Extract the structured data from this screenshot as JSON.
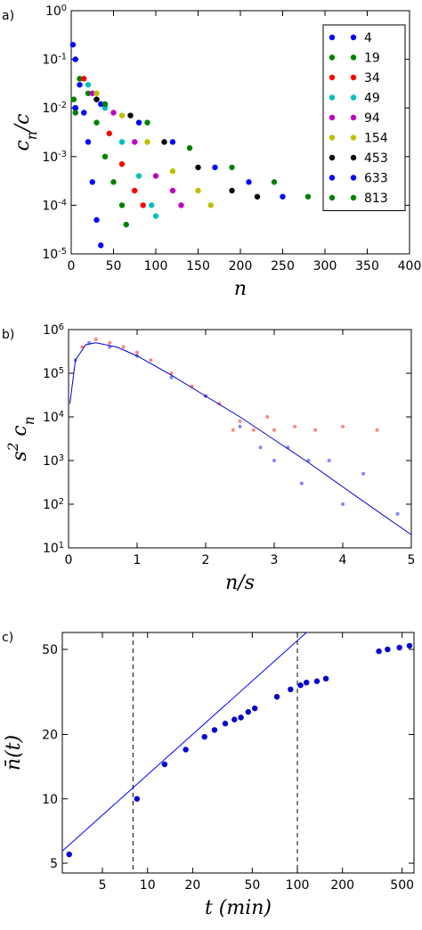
{
  "chart_data": [
    {
      "type": "scatter",
      "panel_label": "a)",
      "x_label": "n",
      "y_label": "c_{n}/c",
      "xlim": [
        0,
        400
      ],
      "ylim": [
        1e-05,
        1
      ],
      "ylog": true,
      "xlog": false,
      "xticks": [
        0,
        50,
        100,
        150,
        200,
        250,
        300,
        350,
        400
      ],
      "yticks": [
        {
          "value": 1e-05,
          "label": "10^{-5}"
        },
        {
          "value": 0.0001,
          "label": "10^{-4}"
        },
        {
          "value": 0.001,
          "label": "10^{-3}"
        },
        {
          "value": 0.01,
          "label": "10^{-2}"
        },
        {
          "value": 0.1,
          "label": "10^{-1}"
        },
        {
          "value": 1,
          "label": "10^{0}"
        }
      ],
      "legend": "upper right",
      "series": [
        {
          "name": "4",
          "color": "#0000ff",
          "x": [
            2,
            5,
            10,
            15,
            20,
            25,
            30,
            35
          ],
          "values": [
            0.2,
            0.1,
            0.03,
            0.008,
            0.002,
            0.0003,
            5e-05,
            1.5e-05
          ]
        },
        {
          "name": "19",
          "color": "#008000",
          "x": [
            3,
            10,
            20,
            30,
            40,
            50,
            60,
            65
          ],
          "values": [
            0.015,
            0.04,
            0.02,
            0.005,
            0.001,
            0.0003,
            0.0001,
            4e-05
          ]
        },
        {
          "name": "34",
          "color": "#ff0000",
          "x": [
            5,
            15,
            30,
            45,
            60,
            75,
            85
          ],
          "values": [
            0.01,
            0.04,
            0.015,
            0.003,
            0.0007,
            0.0002,
            0.0001
          ]
        },
        {
          "name": "49",
          "color": "#00bfbf",
          "x": [
            5,
            20,
            40,
            60,
            80,
            95,
            100
          ],
          "values": [
            0.01,
            0.03,
            0.01,
            0.002,
            0.0004,
            0.0001,
            6e-05
          ]
        },
        {
          "name": "94",
          "color": "#bf00bf",
          "x": [
            5,
            25,
            50,
            75,
            100,
            120,
            130
          ],
          "values": [
            0.01,
            0.02,
            0.008,
            0.002,
            0.0004,
            0.0002,
            0.0001
          ]
        },
        {
          "name": "154",
          "color": "#bfbf00",
          "x": [
            5,
            30,
            60,
            90,
            120,
            150,
            165
          ],
          "values": [
            0.01,
            0.02,
            0.007,
            0.002,
            0.0005,
            0.0002,
            0.0001
          ]
        },
        {
          "name": "453",
          "color": "#000000",
          "x": [
            5,
            30,
            70,
            110,
            150,
            190,
            220
          ],
          "values": [
            0.01,
            0.015,
            0.007,
            0.002,
            0.0006,
            0.0002,
            0.00015
          ]
        },
        {
          "name": "633",
          "color": "#0000ff",
          "x": [
            5,
            35,
            80,
            120,
            170,
            210,
            250
          ],
          "values": [
            0.01,
            0.012,
            0.005,
            0.002,
            0.0006,
            0.0003,
            0.00015
          ]
        },
        {
          "name": "813",
          "color": "#008000",
          "x": [
            5,
            40,
            90,
            140,
            190,
            240,
            280
          ],
          "values": [
            0.008,
            0.012,
            0.005,
            0.0015,
            0.0006,
            0.0003,
            0.00015
          ]
        }
      ]
    },
    {
      "type": "scatter",
      "panel_label": "b)",
      "x_label": "n/s",
      "y_label": "s^{2} c_{n}",
      "xlim": [
        0,
        5
      ],
      "ylim": [
        10,
        1000000
      ],
      "ylog": true,
      "xlog": false,
      "xticks": [
        0,
        1,
        2,
        3,
        4,
        5
      ],
      "yticks": [
        {
          "value": 10,
          "label": "10^{1}"
        },
        {
          "value": 100,
          "label": "10^{2}"
        },
        {
          "value": 1000,
          "label": "10^{3}"
        },
        {
          "value": 10000,
          "label": "10^{4}"
        },
        {
          "value": 100000,
          "label": "10^{5}"
        },
        {
          "value": 1000000,
          "label": "10^{6}"
        }
      ],
      "series": [
        {
          "color": "#ff5050",
          "x": [
            0.2,
            0.4,
            0.6,
            0.8,
            1,
            1.2,
            1.5,
            1.8,
            2,
            2.2,
            2.4,
            2.5,
            2.7,
            2.9,
            3,
            3.3,
            3.6,
            4,
            4.5
          ],
          "values": [
            400000,
            600000,
            500000,
            400000,
            300000,
            200000,
            100000,
            50000,
            30000,
            20000,
            5000,
            8000,
            5000,
            10000,
            5000,
            6000,
            5000,
            6000,
            5000
          ]
        },
        {
          "color": "#5050ff",
          "x": [
            0.1,
            0.3,
            0.6,
            1,
            1.5,
            2,
            2.5,
            2.8,
            3,
            3.2,
            3.4,
            3.5,
            3.8,
            4,
            4.3,
            4.8
          ],
          "values": [
            200000,
            500000,
            400000,
            250000,
            80000,
            30000,
            6000,
            2000,
            1000,
            2000,
            300,
            1000,
            1000,
            100,
            500,
            60
          ]
        },
        {
          "type": "line",
          "color": "#0000cc",
          "x": [
            0.02,
            0.1,
            0.25,
            0.4,
            0.7,
            1,
            1.5,
            2,
            2.5,
            3,
            3.5,
            4,
            4.5,
            5
          ],
          "values": [
            20000,
            200000,
            450000,
            500000,
            400000,
            250000,
            90000,
            30000,
            10000,
            3000,
            900,
            250,
            70,
            20
          ]
        }
      ]
    },
    {
      "type": "scatter",
      "panel_label": "c)",
      "x_label": "t (min)",
      "y_label": "n̄(t)",
      "xlim": [
        2.7,
        600
      ],
      "ylim": [
        4.5,
        60
      ],
      "xlog": true,
      "ylog": true,
      "xticks": [
        5,
        10,
        20,
        50,
        100,
        200,
        500
      ],
      "yticks": [
        5,
        10,
        20,
        50
      ],
      "vlines": [
        8,
        100
      ],
      "series": [
        {
          "color": "#0000cc",
          "x": [
            3,
            8.5,
            13,
            18,
            24,
            28,
            33,
            38,
            42,
            47,
            52,
            73,
            90,
            105,
            115,
            135,
            155,
            350,
            400,
            480,
            560
          ],
          "values": [
            5.5,
            10,
            14.5,
            17,
            19.5,
            21,
            22.5,
            23.5,
            24,
            25.5,
            26.5,
            30,
            32.5,
            34,
            35,
            35.5,
            36.5,
            49,
            50,
            51,
            52
          ]
        },
        {
          "type": "line",
          "color": "#0000ff",
          "x": [
            2.7,
            115
          ],
          "values": [
            5.7,
            60
          ]
        }
      ]
    }
  ]
}
